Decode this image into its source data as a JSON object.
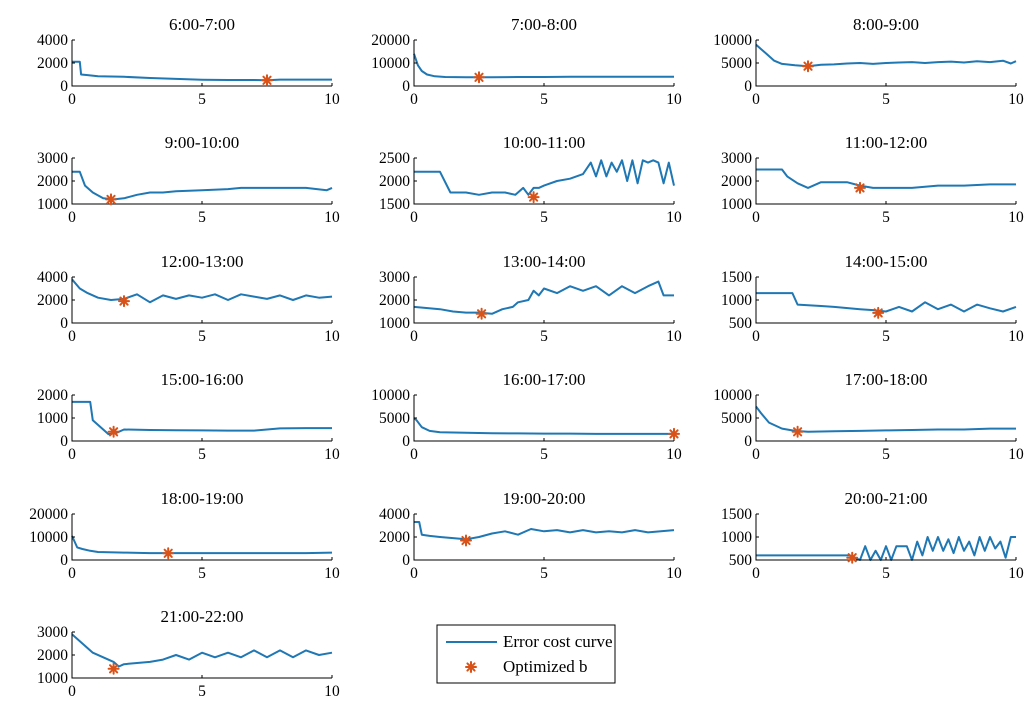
{
  "chart_data": [
    {
      "type": "line",
      "title": "6:00-7:00",
      "xlim": [
        0,
        10
      ],
      "ylim": [
        0,
        4000
      ],
      "xticks": [
        0,
        5,
        10
      ],
      "yticks": [
        0,
        2000,
        4000
      ],
      "series": [
        {
          "x": [
            0,
            0.3,
            0.35,
            0.6,
            1,
            2,
            3,
            4,
            5,
            6,
            7,
            7.5,
            8,
            9,
            10
          ],
          "y": [
            2100,
            2100,
            1000,
            950,
            850,
            800,
            700,
            620,
            550,
            520,
            520,
            500,
            560,
            560,
            560
          ]
        }
      ],
      "optimized": {
        "x": 7.5,
        "y": 500
      }
    },
    {
      "type": "line",
      "title": "7:00-8:00",
      "xlim": [
        0,
        10
      ],
      "ylim": [
        0,
        20000
      ],
      "xticks": [
        0,
        5,
        10
      ],
      "yticks": [
        0,
        10000,
        20000
      ],
      "series": [
        {
          "x": [
            0,
            0.15,
            0.3,
            0.5,
            0.8,
            1.2,
            2,
            2.5,
            3,
            4,
            5,
            6,
            7,
            8,
            9,
            10
          ],
          "y": [
            14000,
            9000,
            6500,
            5000,
            4200,
            3900,
            3800,
            3800,
            3800,
            3900,
            3900,
            4000,
            4000,
            4000,
            4000,
            4000
          ]
        }
      ],
      "optimized": {
        "x": 2.5,
        "y": 3800
      }
    },
    {
      "type": "line",
      "title": "8:00-9:00",
      "xlim": [
        0,
        10
      ],
      "ylim": [
        0,
        10000
      ],
      "xticks": [
        0,
        5,
        10
      ],
      "yticks": [
        0,
        5000,
        10000
      ],
      "series": [
        {
          "x": [
            0,
            0.2,
            0.4,
            0.7,
            1,
            1.5,
            2,
            2.5,
            3,
            3.5,
            4,
            4.5,
            5,
            5.5,
            6,
            6.5,
            7,
            7.5,
            8,
            8.5,
            9,
            9.5,
            9.8,
            10
          ],
          "y": [
            9000,
            8000,
            7000,
            5500,
            4800,
            4500,
            4300,
            4600,
            4700,
            4900,
            5000,
            4800,
            5000,
            5100,
            5200,
            5000,
            5200,
            5300,
            5100,
            5400,
            5200,
            5500,
            4900,
            5400
          ]
        }
      ],
      "optimized": {
        "x": 2,
        "y": 4300
      }
    },
    {
      "type": "line",
      "title": "9:00-10:00",
      "xlim": [
        0,
        10
      ],
      "ylim": [
        1000,
        3000
      ],
      "xticks": [
        0,
        5,
        10
      ],
      "yticks": [
        1000,
        2000,
        3000
      ],
      "series": [
        {
          "x": [
            0,
            0.3,
            0.5,
            0.8,
            1.2,
            1.6,
            2,
            2.5,
            3,
            3.5,
            4,
            5,
            6,
            6.5,
            7,
            8,
            9,
            9.8,
            10
          ],
          "y": [
            2400,
            2400,
            1800,
            1500,
            1250,
            1200,
            1250,
            1400,
            1500,
            1500,
            1550,
            1600,
            1650,
            1700,
            1700,
            1700,
            1700,
            1600,
            1700
          ]
        }
      ],
      "optimized": {
        "x": 1.5,
        "y": 1200
      }
    },
    {
      "type": "line",
      "title": "10:00-11:00",
      "xlim": [
        0,
        10
      ],
      "ylim": [
        1500,
        2500
      ],
      "xticks": [
        0,
        5,
        10
      ],
      "yticks": [
        1500,
        2000,
        2500
      ],
      "series": [
        {
          "x": [
            0,
            1,
            1.4,
            2,
            2.5,
            3,
            3.5,
            3.9,
            4.2,
            4.4,
            4.6,
            4.8,
            5,
            5.5,
            6,
            6.5,
            6.8,
            7,
            7.2,
            7.4,
            7.6,
            7.8,
            8,
            8.2,
            8.4,
            8.6,
            8.8,
            9,
            9.2,
            9.4,
            9.6,
            9.8,
            10
          ],
          "y": [
            2200,
            2200,
            1750,
            1750,
            1700,
            1750,
            1750,
            1700,
            1850,
            1700,
            1850,
            1850,
            1900,
            2000,
            2050,
            2150,
            2400,
            2100,
            2450,
            2100,
            2400,
            2200,
            2450,
            2000,
            2450,
            1950,
            2450,
            2400,
            2450,
            2400,
            1950,
            2400,
            1900
          ]
        }
      ],
      "optimized": {
        "x": 4.6,
        "y": 1650
      }
    },
    {
      "type": "line",
      "title": "11:00-12:00",
      "xlim": [
        0,
        10
      ],
      "ylim": [
        1000,
        3000
      ],
      "xticks": [
        0,
        5,
        10
      ],
      "yticks": [
        1000,
        2000,
        3000
      ],
      "series": [
        {
          "x": [
            0,
            1,
            1.2,
            1.6,
            2,
            2.5,
            3,
            3.5,
            4,
            4.5,
            5,
            5.5,
            6,
            7,
            8,
            9,
            10
          ],
          "y": [
            2500,
            2500,
            2200,
            1900,
            1700,
            1950,
            1950,
            1950,
            1800,
            1700,
            1700,
            1700,
            1700,
            1800,
            1800,
            1850,
            1850
          ]
        }
      ],
      "optimized": {
        "x": 4,
        "y": 1700
      }
    },
    {
      "type": "line",
      "title": "12:00-13:00",
      "xlim": [
        0,
        10
      ],
      "ylim": [
        0,
        4000
      ],
      "xticks": [
        0,
        5,
        10
      ],
      "yticks": [
        0,
        2000,
        4000
      ],
      "series": [
        {
          "x": [
            0,
            0.3,
            0.6,
            1,
            1.5,
            2,
            2.5,
            3,
            3.5,
            4,
            4.5,
            5,
            5.5,
            6,
            6.5,
            7,
            7.5,
            8,
            8.5,
            9,
            9.5,
            10
          ],
          "y": [
            3800,
            3000,
            2600,
            2200,
            2000,
            2100,
            2500,
            1800,
            2400,
            2100,
            2400,
            2200,
            2500,
            2000,
            2500,
            2300,
            2100,
            2400,
            2000,
            2400,
            2200,
            2300
          ]
        }
      ],
      "optimized": {
        "x": 2,
        "y": 1900
      }
    },
    {
      "type": "line",
      "title": "13:00-14:00",
      "xlim": [
        0,
        10
      ],
      "ylim": [
        1000,
        3000
      ],
      "xticks": [
        0,
        5,
        10
      ],
      "yticks": [
        1000,
        2000,
        3000
      ],
      "series": [
        {
          "x": [
            0,
            1,
            1.5,
            2,
            2.5,
            3,
            3.4,
            3.8,
            4,
            4.4,
            4.6,
            4.8,
            5,
            5.5,
            6,
            6.5,
            7,
            7.5,
            8,
            8.5,
            9,
            9.4,
            9.6,
            10
          ],
          "y": [
            1700,
            1600,
            1500,
            1450,
            1450,
            1400,
            1600,
            1700,
            1900,
            2000,
            2400,
            2200,
            2500,
            2300,
            2600,
            2400,
            2600,
            2200,
            2600,
            2300,
            2600,
            2800,
            2200,
            2200
          ]
        }
      ],
      "optimized": {
        "x": 2.6,
        "y": 1400
      }
    },
    {
      "type": "line",
      "title": "14:00-15:00",
      "xlim": [
        0,
        10
      ],
      "ylim": [
        500,
        1500
      ],
      "xticks": [
        0,
        5,
        10
      ],
      "yticks": [
        500,
        1000,
        1500
      ],
      "series": [
        {
          "x": [
            0,
            1.4,
            1.6,
            2.5,
            3,
            4,
            4.5,
            5,
            5.5,
            6,
            6.5,
            7,
            7.5,
            8,
            8.5,
            9,
            9.5,
            10
          ],
          "y": [
            1150,
            1150,
            900,
            870,
            850,
            800,
            780,
            750,
            850,
            750,
            950,
            800,
            900,
            750,
            900,
            820,
            750,
            850
          ]
        }
      ],
      "optimized": {
        "x": 4.7,
        "y": 720
      }
    },
    {
      "type": "line",
      "title": "15:00-16:00",
      "xlim": [
        0,
        10
      ],
      "ylim": [
        0,
        2000
      ],
      "xticks": [
        0,
        5,
        10
      ],
      "yticks": [
        0,
        1000,
        2000
      ],
      "series": [
        {
          "x": [
            0,
            0.7,
            0.8,
            1,
            1.4,
            1.7,
            2,
            3,
            4,
            5,
            6,
            7,
            8,
            9,
            10
          ],
          "y": [
            1700,
            1700,
            900,
            700,
            300,
            350,
            500,
            480,
            470,
            460,
            450,
            450,
            550,
            560,
            560
          ]
        }
      ],
      "optimized": {
        "x": 1.6,
        "y": 400
      }
    },
    {
      "type": "line",
      "title": "16:00-17:00",
      "xlim": [
        0,
        10
      ],
      "ylim": [
        0,
        10000
      ],
      "xticks": [
        0,
        5,
        10
      ],
      "yticks": [
        0,
        5000,
        10000
      ],
      "series": [
        {
          "x": [
            0,
            0.1,
            0.3,
            0.6,
            1,
            2,
            3,
            4,
            5,
            6,
            7,
            8,
            9,
            10
          ],
          "y": [
            5000,
            4500,
            3000,
            2200,
            1900,
            1800,
            1700,
            1650,
            1600,
            1600,
            1550,
            1550,
            1550,
            1550
          ]
        }
      ],
      "optimized": {
        "x": 10,
        "y": 1550
      }
    },
    {
      "type": "line",
      "title": "17:00-18:00",
      "xlim": [
        0,
        10
      ],
      "ylim": [
        0,
        10000
      ],
      "xticks": [
        0,
        5,
        10
      ],
      "yticks": [
        0,
        5000,
        10000
      ],
      "series": [
        {
          "x": [
            0,
            0.2,
            0.5,
            1,
            1.5,
            2,
            3,
            4,
            5,
            6,
            7,
            8,
            9,
            10
          ],
          "y": [
            7500,
            6000,
            4000,
            2700,
            2200,
            2000,
            2100,
            2200,
            2300,
            2400,
            2500,
            2500,
            2700,
            2700
          ]
        }
      ],
      "optimized": {
        "x": 1.6,
        "y": 2000
      }
    },
    {
      "type": "line",
      "title": "18:00-19:00",
      "xlim": [
        0,
        10
      ],
      "ylim": [
        0,
        20000
      ],
      "xticks": [
        0,
        5,
        10
      ],
      "yticks": [
        0,
        10000,
        20000
      ],
      "series": [
        {
          "x": [
            0,
            0.2,
            0.4,
            0.7,
            1,
            2,
            3,
            4,
            5,
            6,
            7,
            8,
            9,
            10
          ],
          "y": [
            10500,
            5500,
            4800,
            4000,
            3500,
            3200,
            3000,
            3000,
            3000,
            3000,
            3000,
            3000,
            3000,
            3200
          ]
        }
      ],
      "optimized": {
        "x": 3.7,
        "y": 2900
      }
    },
    {
      "type": "line",
      "title": "19:00-20:00",
      "xlim": [
        0,
        10
      ],
      "ylim": [
        0,
        4000
      ],
      "xticks": [
        0,
        5,
        10
      ],
      "yticks": [
        0,
        2000,
        4000
      ],
      "series": [
        {
          "x": [
            0,
            0.2,
            0.3,
            0.6,
            1,
            1.5,
            2,
            2.5,
            3,
            3.5,
            4,
            4.5,
            5,
            5.5,
            6,
            6.5,
            7,
            7.5,
            8,
            8.5,
            9,
            9.5,
            10
          ],
          "y": [
            3300,
            3300,
            2200,
            2100,
            2000,
            1900,
            1800,
            2000,
            2300,
            2500,
            2200,
            2700,
            2500,
            2600,
            2400,
            2600,
            2400,
            2500,
            2400,
            2600,
            2400,
            2500,
            2600
          ]
        }
      ],
      "optimized": {
        "x": 2,
        "y": 1700
      }
    },
    {
      "type": "line",
      "title": "20:00-21:00",
      "xlim": [
        0,
        10
      ],
      "ylim": [
        500,
        1500
      ],
      "xticks": [
        0,
        5,
        10
      ],
      "yticks": [
        500,
        1000,
        1500
      ],
      "series": [
        {
          "x": [
            0,
            3.6,
            4,
            4.2,
            4.4,
            4.6,
            4.8,
            5,
            5.2,
            5.4,
            5.6,
            5.8,
            6,
            6.2,
            6.4,
            6.6,
            6.8,
            7,
            7.2,
            7.4,
            7.6,
            7.8,
            8,
            8.2,
            8.4,
            8.6,
            8.8,
            9,
            9.2,
            9.4,
            9.6,
            9.8,
            10
          ],
          "y": [
            600,
            600,
            500,
            800,
            500,
            700,
            500,
            800,
            500,
            800,
            800,
            800,
            500,
            900,
            600,
            1000,
            700,
            1000,
            700,
            950,
            650,
            1000,
            700,
            900,
            600,
            1000,
            700,
            1000,
            750,
            900,
            550,
            1000,
            1000
          ]
        }
      ],
      "optimized": {
        "x": 3.7,
        "y": 550
      }
    },
    {
      "type": "line",
      "title": "21:00-22:00",
      "xlim": [
        0,
        10
      ],
      "ylim": [
        1000,
        3000
      ],
      "xticks": [
        0,
        5,
        10
      ],
      "yticks": [
        1000,
        2000,
        3000
      ],
      "series": [
        {
          "x": [
            0,
            0.4,
            0.8,
            1.2,
            1.6,
            1.8,
            2,
            2.5,
            3,
            3.5,
            4,
            4.5,
            5,
            5.5,
            6,
            6.5,
            7,
            7.5,
            8,
            8.5,
            9,
            9.5,
            10
          ],
          "y": [
            2900,
            2500,
            2100,
            1900,
            1700,
            1500,
            1600,
            1650,
            1700,
            1800,
            2000,
            1800,
            2100,
            1900,
            2100,
            1900,
            2200,
            1900,
            2200,
            1900,
            2200,
            2000,
            2100
          ]
        }
      ],
      "optimized": {
        "x": 1.6,
        "y": 1400
      }
    }
  ],
  "legend": {
    "items": [
      {
        "label": "Error cost curve",
        "kind": "line",
        "color": "#1f77b4"
      },
      {
        "label": "Optimized b",
        "kind": "marker",
        "color": "#d95319"
      }
    ]
  }
}
